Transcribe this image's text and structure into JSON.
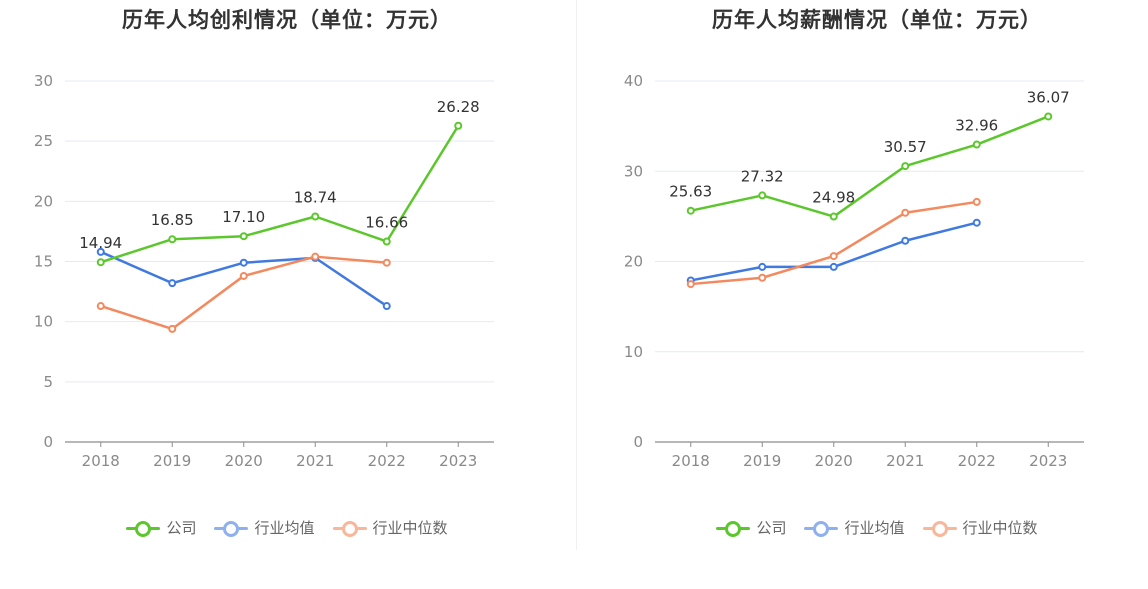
{
  "chart_data": [
    {
      "type": "line",
      "title": "历年人均创利情况（单位：万元）",
      "categories": [
        "2018",
        "2019",
        "2020",
        "2021",
        "2022",
        "2023"
      ],
      "ylim": [
        0,
        30
      ],
      "yticks": [
        0,
        5,
        10,
        15,
        20,
        25,
        30
      ],
      "grid": true,
      "legend_position": "bottom",
      "series": [
        {
          "name": "公司",
          "color": "#5cc72c",
          "values": [
            14.94,
            16.85,
            17.1,
            18.74,
            16.66,
            26.28
          ],
          "labeled": true
        },
        {
          "name": "行业均值",
          "color": "#4079e0",
          "values": [
            15.8,
            13.2,
            14.9,
            15.3,
            11.3,
            null
          ],
          "labeled": false
        },
        {
          "name": "行业中位数",
          "color": "#f3895f",
          "values": [
            11.3,
            9.4,
            13.8,
            15.4,
            14.9,
            null
          ],
          "labeled": false
        }
      ],
      "labels": [
        "14.94",
        "16.85",
        "17.10",
        "18.74",
        "16.66",
        "26.28"
      ]
    },
    {
      "type": "line",
      "title": "历年人均薪酬情况（单位：万元）",
      "categories": [
        "2018",
        "2019",
        "2020",
        "2021",
        "2022",
        "2023"
      ],
      "ylim": [
        0,
        40
      ],
      "yticks": [
        0,
        10,
        20,
        30,
        40
      ],
      "grid": true,
      "legend_position": "bottom",
      "series": [
        {
          "name": "公司",
          "color": "#5cc72c",
          "values": [
            25.63,
            27.32,
            24.98,
            30.57,
            32.96,
            36.07
          ],
          "labeled": true
        },
        {
          "name": "行业均值",
          "color": "#4079e0",
          "values": [
            17.9,
            19.4,
            19.4,
            22.3,
            24.3,
            null
          ],
          "labeled": false
        },
        {
          "name": "行业中位数",
          "color": "#f3895f",
          "values": [
            17.5,
            18.2,
            20.6,
            25.4,
            26.6,
            null
          ],
          "labeled": false
        }
      ],
      "labels": [
        "25.63",
        "27.32",
        "24.98",
        "30.57",
        "32.96",
        "36.07"
      ]
    }
  ]
}
